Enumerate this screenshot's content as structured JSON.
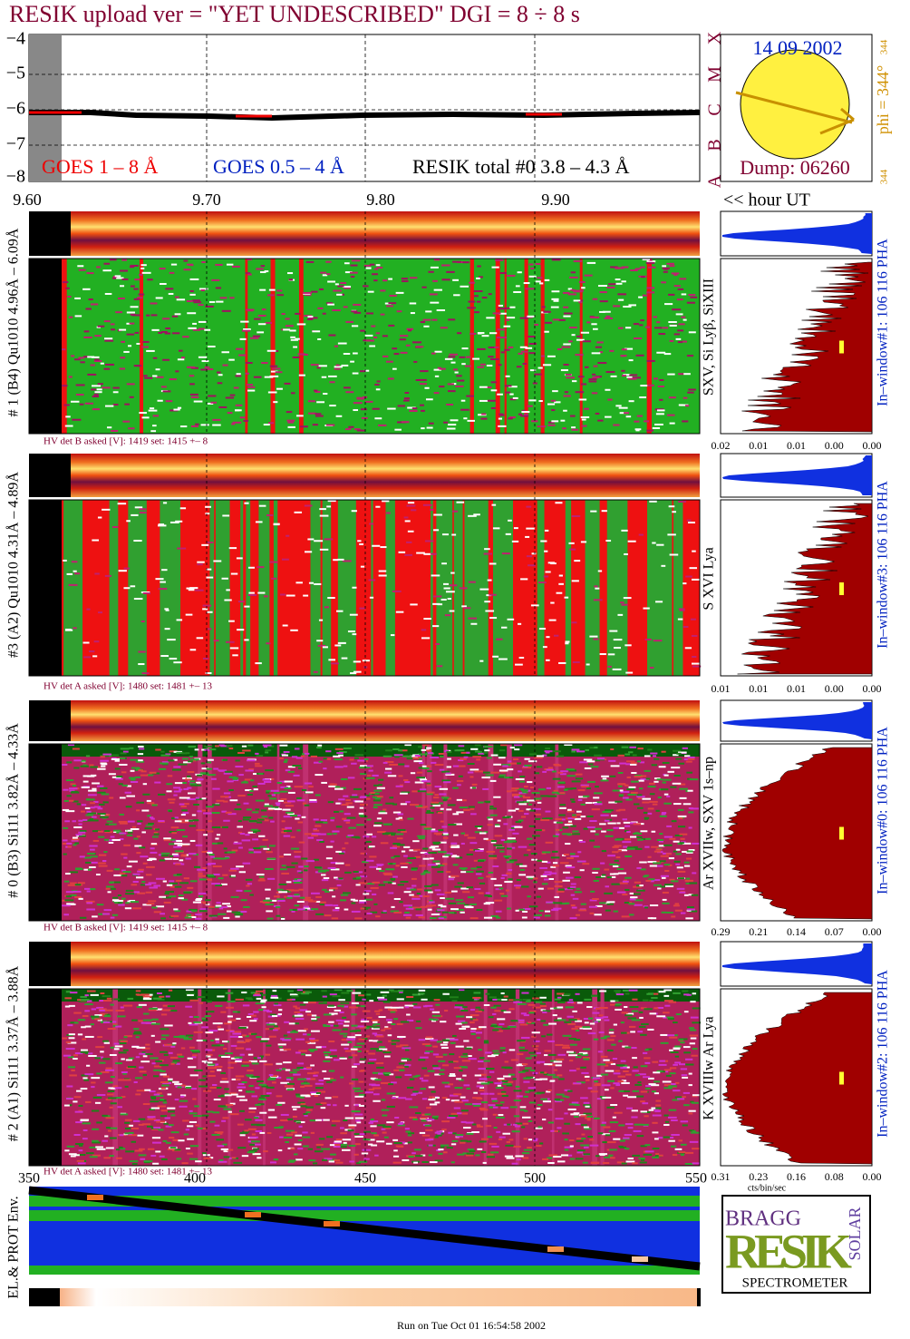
{
  "header": {
    "title": "RESIK upload ver = \"YET UNDESCRIBED\"  DGI =   8 ÷   8 s"
  },
  "goes_panel": {
    "yticks": [
      "−4",
      "−5",
      "−6",
      "−7",
      "−8"
    ],
    "legend": [
      "GOES 1 – 8 Å",
      "GOES 0.5 – 4 Å",
      "RESIK total #0  3.8 – 4.3 Å"
    ],
    "classes": [
      "A",
      "B",
      "C",
      "M",
      "X"
    ],
    "xticks": [
      "9.60",
      "9.70",
      "9.80",
      "9.90"
    ]
  },
  "sun_panel": {
    "date": "14 09 2002",
    "phi": "phi = 344°",
    "phi_sup": "344",
    "phi_foot": "344",
    "dump": "Dump: 06260"
  },
  "hour_label": "<< hour UT",
  "detectors": [
    {
      "label": "# 1 (B4) Qu1010 4.96Å – 6.09Å",
      "lines": "SXV, Si Lyβ, SiXIII",
      "window": "In–window#1:  106 116 PHA",
      "hv": "HV det B asked [V]:  1419 set:  1415 +–    8",
      "hist_ticks": [
        "0.02",
        "0.01",
        "0.01",
        "0.00",
        "0.00"
      ]
    },
    {
      "label": "#3 (A2) Qu1010  4.31Å – 4.89Å",
      "lines": "S XVI Lya",
      "window": "In–window#3:  106 116 PHA",
      "hv": "HV det A asked [V]:  1480 set:  1481 +–   13",
      "hist_ticks": [
        "0.01",
        "0.01",
        "0.01",
        "0.00",
        "0.00"
      ]
    },
    {
      "label": "# 0 (B3) Si111  3.82Å – 4.33Å",
      "lines": "Ar XVIIw, SXV 1s–np",
      "window": "In–window#0:  106 116 PHA",
      "hv": "HV det B asked [V]:  1419 set:  1415 +–    8",
      "hist_ticks": [
        "0.29",
        "0.21",
        "0.14",
        "0.07",
        "0.00"
      ]
    },
    {
      "label": "# 2 (A1) Si111  3.37Å – 3.88Å",
      "lines": "K XVIIIw  Ar Lya",
      "window": "In–window#2:  106 116 PHA",
      "hv": "HV det A asked [V]:  1480 set:  1481 +–   13",
      "hist_ticks": [
        "0.31",
        "0.23",
        "0.16",
        "0.08",
        "0.00"
      ]
    }
  ],
  "hist_unit": "cts/bin/sec",
  "env_panel": {
    "xticks": [
      "350",
      "400",
      "450",
      "500",
      "550"
    ],
    "label": "EL.& PROT Env."
  },
  "logo": {
    "top": "BRAGG",
    "middle": "RESIK",
    "side": "SOLAR",
    "bottom": "SPECTROMETER"
  },
  "footer": "Run on Tue Oct 01 16:54:58 2002"
}
